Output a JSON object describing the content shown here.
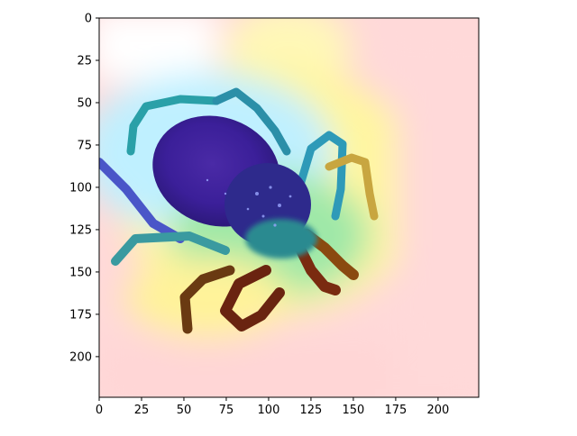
{
  "figure": {
    "description": "",
    "image_size": [
      224,
      224
    ],
    "x_ticks": [
      0,
      25,
      50,
      75,
      100,
      125,
      150,
      175,
      200
    ],
    "y_ticks": [
      0,
      25,
      50,
      75,
      100,
      125,
      150,
      175,
      200
    ],
    "colormap": "jet",
    "colors": {
      "background": "#ffffff",
      "heat_low": "#ffd3d3",
      "heat_mid_yellow": "#fff7a8",
      "heat_mid_green": "#8fe5b0",
      "heat_high": "#4a3bd6",
      "tick_color": "#000000"
    }
  }
}
